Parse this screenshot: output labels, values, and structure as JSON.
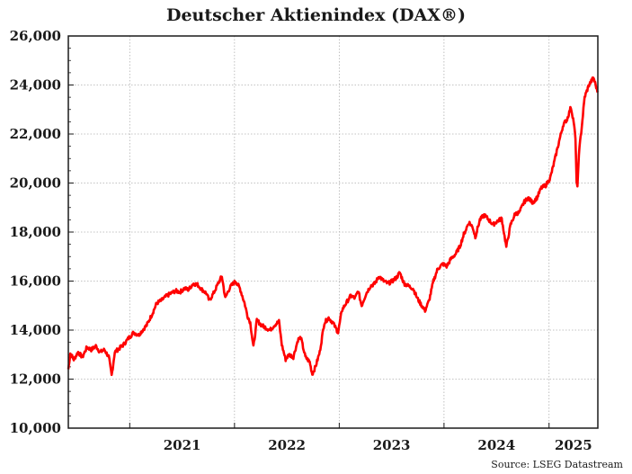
{
  "chart_data": {
    "type": "line",
    "title": "Deutscher Aktienindex (DAX®)",
    "source": "Source: LSEG Datastream",
    "xlabel": "",
    "ylabel": "",
    "ylim": [
      10000,
      26000
    ],
    "xlim": [
      "2020-06-01",
      "2025-06-20"
    ],
    "yticks": [
      "10,000",
      "12,000",
      "14,000",
      "16,000",
      "18,000",
      "20,000",
      "22,000",
      "24,000",
      "26,000"
    ],
    "xticks": [
      "2021",
      "2022",
      "2023",
      "2024",
      "2025"
    ],
    "grid": true,
    "colors": {
      "line": "#ff0000",
      "grid": "#b0b0b0",
      "axis": "#1a1a1a"
    },
    "series": [
      {
        "x": [
          "2020-06-01",
          "2020-06-08",
          "2020-06-20",
          "2020-07-05",
          "2020-07-20",
          "2020-08-05",
          "2020-08-20",
          "2020-09-05",
          "2020-09-20",
          "2020-10-05",
          "2020-10-20",
          "2020-10-30",
          "2020-11-10",
          "2020-11-25",
          "2020-12-10",
          "2020-12-30",
          "2021-01-15",
          "2021-02-01",
          "2021-02-15",
          "2021-03-01",
          "2021-03-20",
          "2021-04-05",
          "2021-04-20",
          "2021-05-10",
          "2021-05-25",
          "2021-06-10",
          "2021-06-25",
          "2021-07-10",
          "2021-07-25",
          "2021-08-10",
          "2021-08-25",
          "2021-09-10",
          "2021-09-25",
          "2021-10-05",
          "2021-10-20",
          "2021-11-05",
          "2021-11-18",
          "2021-11-30",
          "2021-12-10",
          "2021-12-20",
          "2022-01-05",
          "2022-01-20",
          "2022-02-05",
          "2022-02-15",
          "2022-02-25",
          "2022-03-08",
          "2022-03-20",
          "2022-04-05",
          "2022-04-20",
          "2022-05-05",
          "2022-05-20",
          "2022-06-05",
          "2022-06-15",
          "2022-06-28",
          "2022-07-10",
          "2022-07-25",
          "2022-08-10",
          "2022-08-20",
          "2022-09-05",
          "2022-09-20",
          "2022-09-29",
          "2022-10-10",
          "2022-10-25",
          "2022-11-10",
          "2022-11-25",
          "2022-12-10",
          "2022-12-28",
          "2023-01-10",
          "2023-01-25",
          "2023-02-10",
          "2023-02-25",
          "2023-03-08",
          "2023-03-20",
          "2023-04-05",
          "2023-04-20",
          "2023-05-05",
          "2023-05-20",
          "2023-06-05",
          "2023-06-20",
          "2023-07-05",
          "2023-07-20",
          "2023-07-31",
          "2023-08-15",
          "2023-08-30",
          "2023-09-15",
          "2023-09-30",
          "2023-10-10",
          "2023-10-27",
          "2023-11-10",
          "2023-11-25",
          "2023-12-10",
          "2023-12-28",
          "2024-01-10",
          "2024-01-25",
          "2024-02-10",
          "2024-02-25",
          "2024-03-10",
          "2024-03-28",
          "2024-04-10",
          "2024-04-19",
          "2024-05-05",
          "2024-05-20",
          "2024-06-05",
          "2024-06-20",
          "2024-07-05",
          "2024-07-20",
          "2024-08-05",
          "2024-08-20",
          "2024-09-05",
          "2024-09-20",
          "2024-10-05",
          "2024-10-20",
          "2024-11-05",
          "2024-11-20",
          "2024-12-05",
          "2024-12-20",
          "2025-01-05",
          "2025-01-20",
          "2025-02-05",
          "2025-02-20",
          "2025-03-05",
          "2025-03-18",
          "2025-03-28",
          "2025-04-03",
          "2025-04-07",
          "2025-04-10",
          "2025-04-15",
          "2025-04-25",
          "2025-05-05",
          "2025-05-20",
          "2025-06-05",
          "2025-06-20"
        ],
        "values": [
          12400,
          13050,
          12800,
          13100,
          12900,
          13300,
          13200,
          13350,
          13100,
          13200,
          12900,
          12150,
          13100,
          13250,
          13400,
          13700,
          13900,
          13800,
          14000,
          14200,
          14650,
          15100,
          15200,
          15400,
          15500,
          15600,
          15550,
          15700,
          15650,
          15900,
          15850,
          15650,
          15500,
          15200,
          15500,
          15900,
          16200,
          15300,
          15600,
          15800,
          16000,
          15700,
          15100,
          14600,
          14300,
          13300,
          14400,
          14200,
          14100,
          14000,
          14200,
          14350,
          13400,
          12800,
          13000,
          12900,
          13600,
          13700,
          12900,
          12700,
          12200,
          12500,
          13100,
          14300,
          14500,
          14300,
          13900,
          14800,
          15100,
          15400,
          15300,
          15600,
          15000,
          15500,
          15800,
          15900,
          16200,
          16000,
          15900,
          16000,
          16150,
          16350,
          15900,
          15800,
          15700,
          15300,
          15100,
          14800,
          15200,
          16000,
          16500,
          16700,
          16600,
          16900,
          17100,
          17400,
          17900,
          18400,
          18200,
          17800,
          18500,
          18700,
          18500,
          18300,
          18450,
          18550,
          17400,
          18300,
          18750,
          18800,
          19200,
          19400,
          19200,
          19400,
          19800,
          19900,
          20200,
          20900,
          21700,
          22400,
          22600,
          23100,
          22500,
          21800,
          20100,
          19800,
          21200,
          22300,
          23500,
          24000,
          24300,
          23700
        ]
      }
    ]
  }
}
